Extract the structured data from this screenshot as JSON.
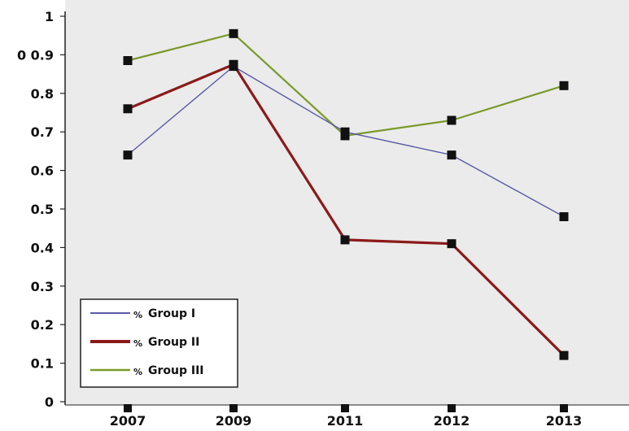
{
  "chart_data": {
    "type": "line",
    "categories": [
      "2007",
      "2009",
      "2011",
      "2012",
      "2013"
    ],
    "y_ticks": [
      {
        "value": 0,
        "label": "0"
      },
      {
        "value": 0.1,
        "label": "0.1"
      },
      {
        "value": 0.2,
        "label": "0.2"
      },
      {
        "value": 0.3,
        "label": "0.3"
      },
      {
        "value": 0.4,
        "label": "0.4"
      },
      {
        "value": 0.5,
        "label": "0.5"
      },
      {
        "value": 0.6,
        "label": "0.6"
      },
      {
        "value": 0.7,
        "label": "0.7"
      },
      {
        "value": 0.8,
        "label": "0.8"
      },
      {
        "value": 0.9,
        "label": "0 0.9"
      },
      {
        "value": 1,
        "label": "1"
      }
    ],
    "ylim": [
      0,
      1
    ],
    "grid": false,
    "plot_background": "#ebebeb",
    "legend": {
      "position": "bottom-left",
      "prefix": "%"
    },
    "series": [
      {
        "name": "Group I",
        "color": "#5a5aa8",
        "values": [
          0.64,
          0.87,
          0.7,
          0.64,
          0.48
        ]
      },
      {
        "name": "Group II",
        "color": "#8b1a1a",
        "values": [
          0.76,
          0.875,
          0.42,
          0.41,
          0.12
        ]
      },
      {
        "name": "Group III",
        "color": "#7a9a2a",
        "values": [
          0.885,
          0.955,
          0.69,
          0.73,
          0.82
        ]
      }
    ],
    "marker_color": "#111111"
  }
}
